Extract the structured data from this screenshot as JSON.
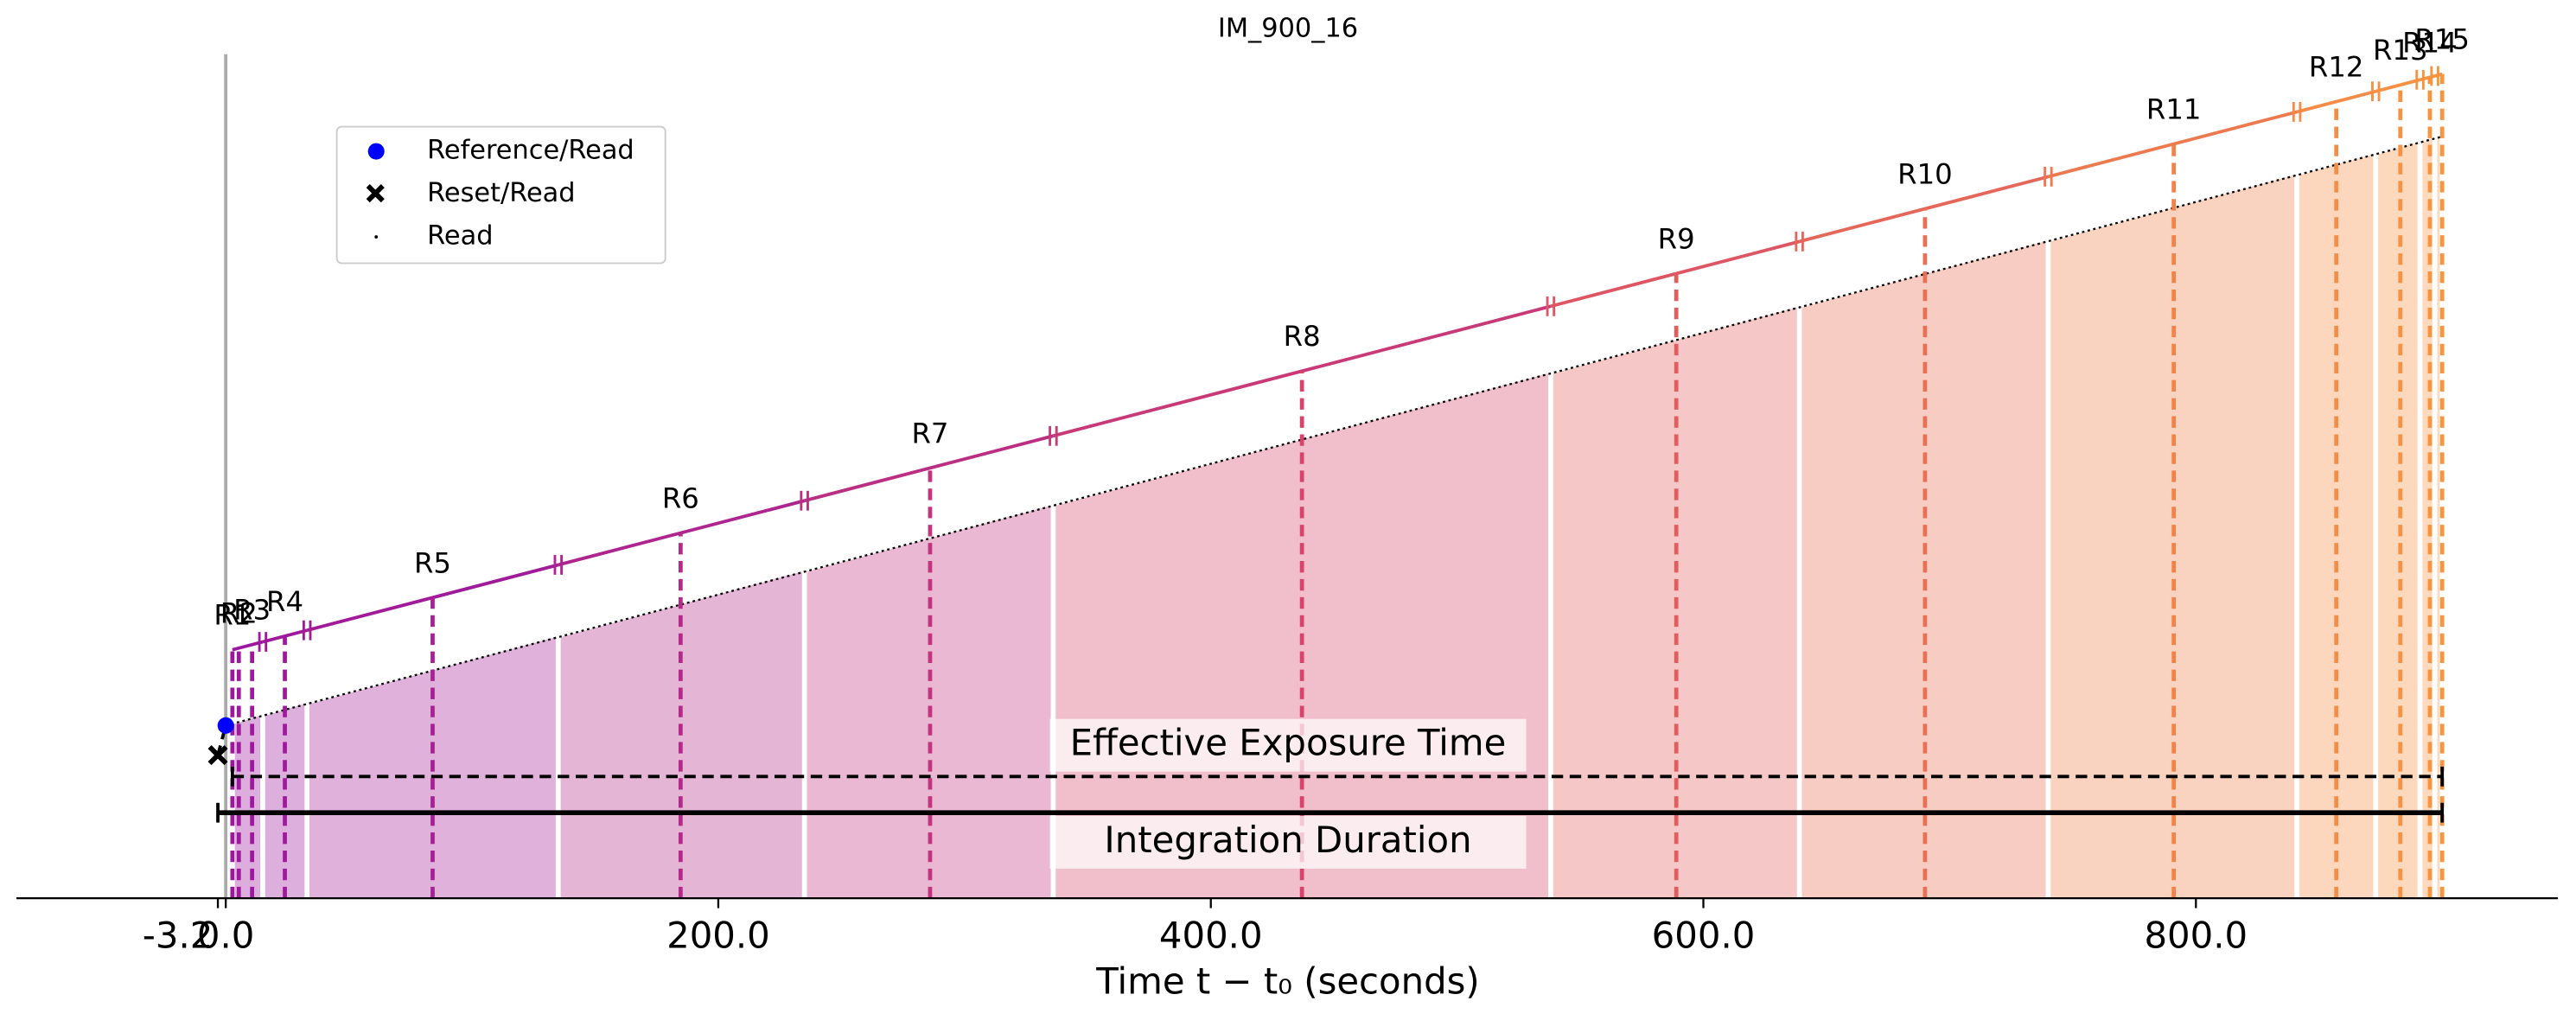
{
  "chart_data": {
    "type": "read-timeline",
    "title": "IM_900_16",
    "xlabel": "Time t − t₀ (seconds)",
    "xlim": [
      -85,
      947
    ],
    "xticks": [
      -3.2,
      {
        "value": 0,
        "label": "0.0"
      },
      {
        "value": 200,
        "label": "200.0"
      },
      {
        "value": 400,
        "label": "400.0"
      },
      {
        "value": 600,
        "label": "600.0"
      },
      {
        "value": 800,
        "label": "800.0"
      }
    ],
    "reset_time": -3.2,
    "reference_time": 0,
    "reads": {
      "names": [
        "R1",
        "R2",
        "R3",
        "R4",
        "R5",
        "R6",
        "R7",
        "R8",
        "R9",
        "R10",
        "R11",
        "R12",
        "R13",
        "R14",
        "R15"
      ],
      "values": [
        2.7,
        5.3,
        10.7,
        24,
        84,
        184.7,
        286,
        437,
        589,
        690,
        791,
        857,
        883,
        895,
        900
      ]
    },
    "group_edges": [
      2.7,
      15,
      33,
      135,
      235,
      336,
      538,
      639,
      740,
      841,
      873,
      891,
      897,
      900
    ],
    "colors": [
      "#9c179e",
      "#d8456b",
      "#f89540"
    ],
    "effective_exposure": {
      "label": "Effective Exposure Time",
      "values": [
        2.7,
        900
      ]
    },
    "integration_duration": {
      "label": "Integration Duration",
      "values": [
        -3.2,
        900
      ]
    },
    "legend": [
      "Reference/Read",
      "Reset/Read",
      "Read"
    ]
  }
}
